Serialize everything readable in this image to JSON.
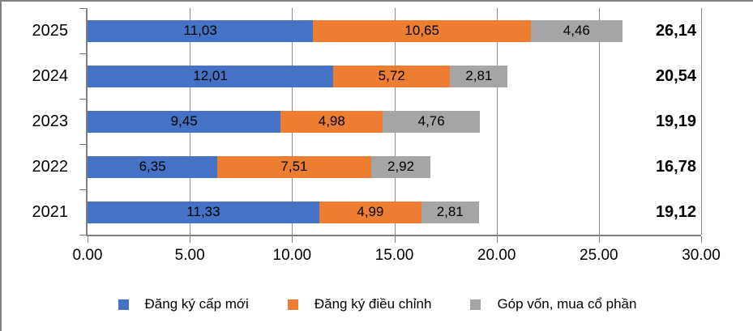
{
  "chart_data": {
    "type": "bar",
    "orientation": "horizontal",
    "stacked": true,
    "title": "",
    "xlabel": "",
    "ylabel": "",
    "categories": [
      "2025",
      "2024",
      "2023",
      "2022",
      "2021"
    ],
    "series": [
      {
        "name": "Đăng ký cấp mới",
        "color": "#4472C4",
        "values": [
          11.03,
          12.01,
          9.45,
          6.35,
          11.33
        ]
      },
      {
        "name": "Đăng ký điều chỉnh",
        "color": "#ED7D31",
        "values": [
          10.65,
          5.72,
          4.98,
          7.51,
          4.99
        ]
      },
      {
        "name": "Góp vốn, mua cổ phần",
        "color": "#A5A5A5",
        "values": [
          4.46,
          2.81,
          4.76,
          2.92,
          2.81
        ]
      }
    ],
    "totals": [
      26.14,
      20.54,
      19.19,
      16.78,
      19.12
    ],
    "x_axis": {
      "min": 0,
      "max": 30,
      "tick_step": 5,
      "tick_labels": [
        "0.00",
        "5.00",
        "10.00",
        "15.00",
        "20.00",
        "25.00",
        "30.00"
      ]
    },
    "value_label_decimal_separator": ",",
    "grid": true,
    "legend_position": "bottom",
    "colors": {
      "gridline": "#8C8C8C",
      "axis": "#7F7F7F",
      "border": "#808080",
      "text": "#000000"
    }
  }
}
